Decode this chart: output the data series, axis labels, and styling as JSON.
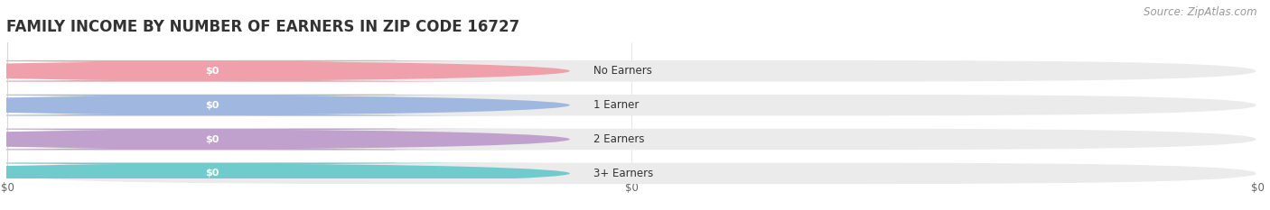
{
  "title": "FAMILY INCOME BY NUMBER OF EARNERS IN ZIP CODE 16727",
  "source": "Source: ZipAtlas.com",
  "categories": [
    "No Earners",
    "1 Earner",
    "2 Earners",
    "3+ Earners"
  ],
  "values": [
    0,
    0,
    0,
    0
  ],
  "bar_colors": [
    "#f0a0aa",
    "#a0b8e0",
    "#c0a0cc",
    "#70cccc"
  ],
  "value_labels": [
    "$0",
    "$0",
    "$0",
    "$0"
  ],
  "background_color": "#ffffff",
  "title_fontsize": 12,
  "source_fontsize": 8.5,
  "row_bg_color": "#ebebeb",
  "label_bg_color": "#f8f8f8",
  "tick_labels": [
    "$0",
    "$0",
    "$0"
  ]
}
